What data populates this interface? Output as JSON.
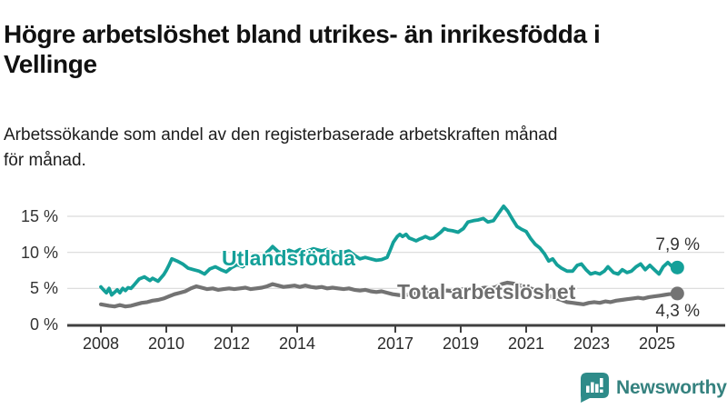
{
  "header": {
    "title_line1": "Högre arbetslöshet bland utrikes- än inrikesfödda i",
    "title_line2": "Vellinge",
    "subtitle_line1": "Arbetssökande som andel av den registerbaserade arbetskraften månad",
    "subtitle_line2": "för månad."
  },
  "footer": {
    "brand": "Newsworthy"
  },
  "colors": {
    "teal_series": "#14a099",
    "gray_series": "#737373",
    "gray_label": "#6e6e6e",
    "axis": "#404040",
    "gridline": "#d9d9d9",
    "text": "#333333",
    "logo_teal": "#2e8b89"
  },
  "chart_data": {
    "type": "line",
    "title": "Högre arbetslöshet bland utrikes- än inrikesfödda i Vellinge",
    "subtitle": "Arbetssökande som andel av den registerbaserade arbetskraften månad för månad.",
    "unit": "%",
    "grid": true,
    "legend_position": "inline-labels",
    "xlim": [
      2007.85,
      2026.2
    ],
    "ylim": [
      0,
      17
    ],
    "x_axis": {
      "ticks": [
        {
          "year": 2008,
          "label": "2008"
        },
        {
          "year": 2010,
          "label": "2010"
        },
        {
          "year": 2012,
          "label": "2012"
        },
        {
          "year": 2014,
          "label": "2014"
        },
        {
          "year": 2017,
          "label": "2017"
        },
        {
          "year": 2019,
          "label": "2019"
        },
        {
          "year": 2021,
          "label": "2021"
        },
        {
          "year": 2023,
          "label": "2023"
        },
        {
          "year": 2025,
          "label": "2025"
        }
      ]
    },
    "y_axis": {
      "ticks": [
        {
          "value": 0,
          "label": "0 %"
        },
        {
          "value": 5,
          "label": "5 %"
        },
        {
          "value": 10,
          "label": "10 %"
        },
        {
          "value": 15,
          "label": "15 %"
        }
      ]
    },
    "series": [
      {
        "name": "Total arbetslöshet",
        "color": "#737373",
        "end_label": "4,3 %",
        "end_value": 4.3,
        "points": [
          [
            2008.0,
            2.8
          ],
          [
            2008.25,
            2.6
          ],
          [
            2008.42,
            2.5
          ],
          [
            2008.58,
            2.7
          ],
          [
            2008.75,
            2.5
          ],
          [
            2008.92,
            2.6
          ],
          [
            2009.08,
            2.8
          ],
          [
            2009.25,
            3.0
          ],
          [
            2009.42,
            3.1
          ],
          [
            2009.58,
            3.3
          ],
          [
            2009.75,
            3.4
          ],
          [
            2009.92,
            3.6
          ],
          [
            2010.08,
            3.9
          ],
          [
            2010.25,
            4.2
          ],
          [
            2010.42,
            4.4
          ],
          [
            2010.58,
            4.6
          ],
          [
            2010.75,
            5.0
          ],
          [
            2010.92,
            5.3
          ],
          [
            2011.08,
            5.1
          ],
          [
            2011.25,
            4.9
          ],
          [
            2011.42,
            5.0
          ],
          [
            2011.58,
            4.8
          ],
          [
            2011.75,
            4.9
          ],
          [
            2011.92,
            5.0
          ],
          [
            2012.08,
            4.9
          ],
          [
            2012.25,
            5.0
          ],
          [
            2012.42,
            5.1
          ],
          [
            2012.58,
            4.9
          ],
          [
            2012.75,
            5.0
          ],
          [
            2012.92,
            5.1
          ],
          [
            2013.08,
            5.3
          ],
          [
            2013.25,
            5.6
          ],
          [
            2013.42,
            5.4
          ],
          [
            2013.58,
            5.2
          ],
          [
            2013.75,
            5.3
          ],
          [
            2013.92,
            5.4
          ],
          [
            2014.08,
            5.2
          ],
          [
            2014.25,
            5.4
          ],
          [
            2014.42,
            5.2
          ],
          [
            2014.58,
            5.1
          ],
          [
            2014.75,
            5.2
          ],
          [
            2014.92,
            5.0
          ],
          [
            2015.08,
            5.1
          ],
          [
            2015.25,
            5.0
          ],
          [
            2015.42,
            4.9
          ],
          [
            2015.58,
            5.0
          ],
          [
            2015.75,
            4.8
          ],
          [
            2015.92,
            4.7
          ],
          [
            2016.08,
            4.8
          ],
          [
            2016.25,
            4.6
          ],
          [
            2016.42,
            4.5
          ],
          [
            2016.58,
            4.6
          ],
          [
            2016.75,
            4.4
          ],
          [
            2016.92,
            4.2
          ],
          [
            2017.08,
            4.1
          ],
          [
            2017.25,
            4.0
          ],
          [
            2017.42,
            4.2
          ],
          [
            2017.58,
            4.3
          ],
          [
            2017.75,
            4.2
          ],
          [
            2017.92,
            4.4
          ],
          [
            2018.08,
            4.5
          ],
          [
            2018.25,
            4.4
          ],
          [
            2018.42,
            4.6
          ],
          [
            2018.58,
            4.7
          ],
          [
            2018.75,
            4.6
          ],
          [
            2018.92,
            4.8
          ],
          [
            2019.08,
            4.9
          ],
          [
            2019.25,
            5.0
          ],
          [
            2019.42,
            5.1
          ],
          [
            2019.58,
            5.0
          ],
          [
            2019.75,
            5.1
          ],
          [
            2019.92,
            5.0
          ],
          [
            2020.08,
            5.2
          ],
          [
            2020.25,
            5.6
          ],
          [
            2020.42,
            5.8
          ],
          [
            2020.58,
            5.7
          ],
          [
            2020.75,
            5.5
          ],
          [
            2020.92,
            5.3
          ],
          [
            2021.08,
            5.1
          ],
          [
            2021.25,
            4.8
          ],
          [
            2021.42,
            4.5
          ],
          [
            2021.58,
            4.2
          ],
          [
            2021.75,
            3.9
          ],
          [
            2021.92,
            3.6
          ],
          [
            2022.08,
            3.4
          ],
          [
            2022.25,
            3.1
          ],
          [
            2022.42,
            3.0
          ],
          [
            2022.58,
            2.9
          ],
          [
            2022.75,
            2.8
          ],
          [
            2022.92,
            3.0
          ],
          [
            2023.08,
            3.1
          ],
          [
            2023.25,
            3.0
          ],
          [
            2023.42,
            3.2
          ],
          [
            2023.58,
            3.1
          ],
          [
            2023.75,
            3.3
          ],
          [
            2023.92,
            3.4
          ],
          [
            2024.08,
            3.5
          ],
          [
            2024.25,
            3.6
          ],
          [
            2024.42,
            3.7
          ],
          [
            2024.58,
            3.6
          ],
          [
            2024.75,
            3.8
          ],
          [
            2024.92,
            3.9
          ],
          [
            2025.08,
            4.0
          ],
          [
            2025.22,
            4.1
          ],
          [
            2025.36,
            4.2
          ],
          [
            2025.5,
            4.25
          ],
          [
            2025.62,
            4.3
          ]
        ]
      },
      {
        "name": "Utlandsfödda",
        "color": "#14a099",
        "end_label": "7,9 %",
        "end_value": 7.9,
        "points": [
          [
            2008.0,
            5.2
          ],
          [
            2008.08,
            4.8
          ],
          [
            2008.17,
            4.4
          ],
          [
            2008.25,
            5.0
          ],
          [
            2008.33,
            4.1
          ],
          [
            2008.5,
            4.8
          ],
          [
            2008.58,
            4.4
          ],
          [
            2008.67,
            5.0
          ],
          [
            2008.75,
            4.7
          ],
          [
            2008.83,
            5.1
          ],
          [
            2008.92,
            5.0
          ],
          [
            2009.0,
            5.4
          ],
          [
            2009.17,
            6.3
          ],
          [
            2009.33,
            6.6
          ],
          [
            2009.5,
            6.1
          ],
          [
            2009.58,
            6.4
          ],
          [
            2009.75,
            6.0
          ],
          [
            2009.92,
            6.9
          ],
          [
            2010.0,
            7.5
          ],
          [
            2010.08,
            8.2
          ],
          [
            2010.17,
            9.1
          ],
          [
            2010.33,
            8.8
          ],
          [
            2010.5,
            8.4
          ],
          [
            2010.67,
            7.8
          ],
          [
            2010.83,
            7.6
          ],
          [
            2011.0,
            7.4
          ],
          [
            2011.17,
            7.0
          ],
          [
            2011.33,
            7.7
          ],
          [
            2011.5,
            8.0
          ],
          [
            2011.67,
            7.6
          ],
          [
            2011.83,
            7.3
          ],
          [
            2012.0,
            7.9
          ],
          [
            2012.17,
            8.3
          ],
          [
            2012.33,
            8.0
          ],
          [
            2012.5,
            8.5
          ],
          [
            2012.67,
            8.8
          ],
          [
            2012.83,
            9.2
          ],
          [
            2013.0,
            9.7
          ],
          [
            2013.17,
            10.4
          ],
          [
            2013.25,
            10.8
          ],
          [
            2013.42,
            10.1
          ],
          [
            2013.58,
            9.9
          ],
          [
            2013.75,
            10.3
          ],
          [
            2013.92,
            10.0
          ],
          [
            2014.08,
            10.4
          ],
          [
            2014.25,
            10.1
          ],
          [
            2014.5,
            10.5
          ],
          [
            2014.75,
            10.2
          ],
          [
            2014.92,
            10.4
          ],
          [
            2015.08,
            10.0
          ],
          [
            2015.25,
            9.8
          ],
          [
            2015.42,
            10.0
          ],
          [
            2015.58,
            10.2
          ],
          [
            2015.75,
            9.6
          ],
          [
            2015.92,
            9.1
          ],
          [
            2016.08,
            9.3
          ],
          [
            2016.25,
            9.1
          ],
          [
            2016.42,
            8.9
          ],
          [
            2016.58,
            9.0
          ],
          [
            2016.75,
            9.3
          ],
          [
            2016.86,
            10.5
          ],
          [
            2016.94,
            11.4
          ],
          [
            2017.06,
            12.2
          ],
          [
            2017.14,
            12.5
          ],
          [
            2017.22,
            12.2
          ],
          [
            2017.33,
            12.5
          ],
          [
            2017.42,
            12.0
          ],
          [
            2017.53,
            11.8
          ],
          [
            2017.64,
            11.6
          ],
          [
            2017.72,
            11.8
          ],
          [
            2017.83,
            12.0
          ],
          [
            2017.92,
            12.2
          ],
          [
            2018.06,
            11.9
          ],
          [
            2018.17,
            12.0
          ],
          [
            2018.28,
            12.4
          ],
          [
            2018.39,
            12.8
          ],
          [
            2018.5,
            13.3
          ],
          [
            2018.61,
            13.1
          ],
          [
            2018.75,
            13.0
          ],
          [
            2018.92,
            12.8
          ],
          [
            2019.08,
            13.3
          ],
          [
            2019.22,
            14.2
          ],
          [
            2019.39,
            14.4
          ],
          [
            2019.53,
            14.5
          ],
          [
            2019.69,
            14.7
          ],
          [
            2019.83,
            14.2
          ],
          [
            2020.0,
            14.4
          ],
          [
            2020.14,
            15.3
          ],
          [
            2020.31,
            16.4
          ],
          [
            2020.44,
            15.7
          ],
          [
            2020.58,
            14.6
          ],
          [
            2020.72,
            13.6
          ],
          [
            2020.86,
            13.2
          ],
          [
            2021.0,
            12.9
          ],
          [
            2021.14,
            11.9
          ],
          [
            2021.28,
            11.1
          ],
          [
            2021.42,
            10.6
          ],
          [
            2021.56,
            9.8
          ],
          [
            2021.69,
            8.8
          ],
          [
            2021.81,
            9.1
          ],
          [
            2021.94,
            8.3
          ],
          [
            2022.08,
            7.8
          ],
          [
            2022.25,
            7.4
          ],
          [
            2022.42,
            7.4
          ],
          [
            2022.56,
            8.2
          ],
          [
            2022.69,
            8.4
          ],
          [
            2022.83,
            7.6
          ],
          [
            2022.97,
            7.0
          ],
          [
            2023.11,
            7.2
          ],
          [
            2023.25,
            7.0
          ],
          [
            2023.39,
            7.4
          ],
          [
            2023.5,
            8.0
          ],
          [
            2023.67,
            7.2
          ],
          [
            2023.81,
            7.0
          ],
          [
            2023.94,
            7.6
          ],
          [
            2024.08,
            7.2
          ],
          [
            2024.22,
            7.4
          ],
          [
            2024.36,
            8.0
          ],
          [
            2024.5,
            8.4
          ],
          [
            2024.64,
            7.6
          ],
          [
            2024.78,
            8.2
          ],
          [
            2024.92,
            7.6
          ],
          [
            2025.06,
            7.0
          ],
          [
            2025.19,
            8.0
          ],
          [
            2025.33,
            8.6
          ],
          [
            2025.47,
            8.0
          ],
          [
            2025.62,
            7.9
          ]
        ]
      }
    ]
  }
}
